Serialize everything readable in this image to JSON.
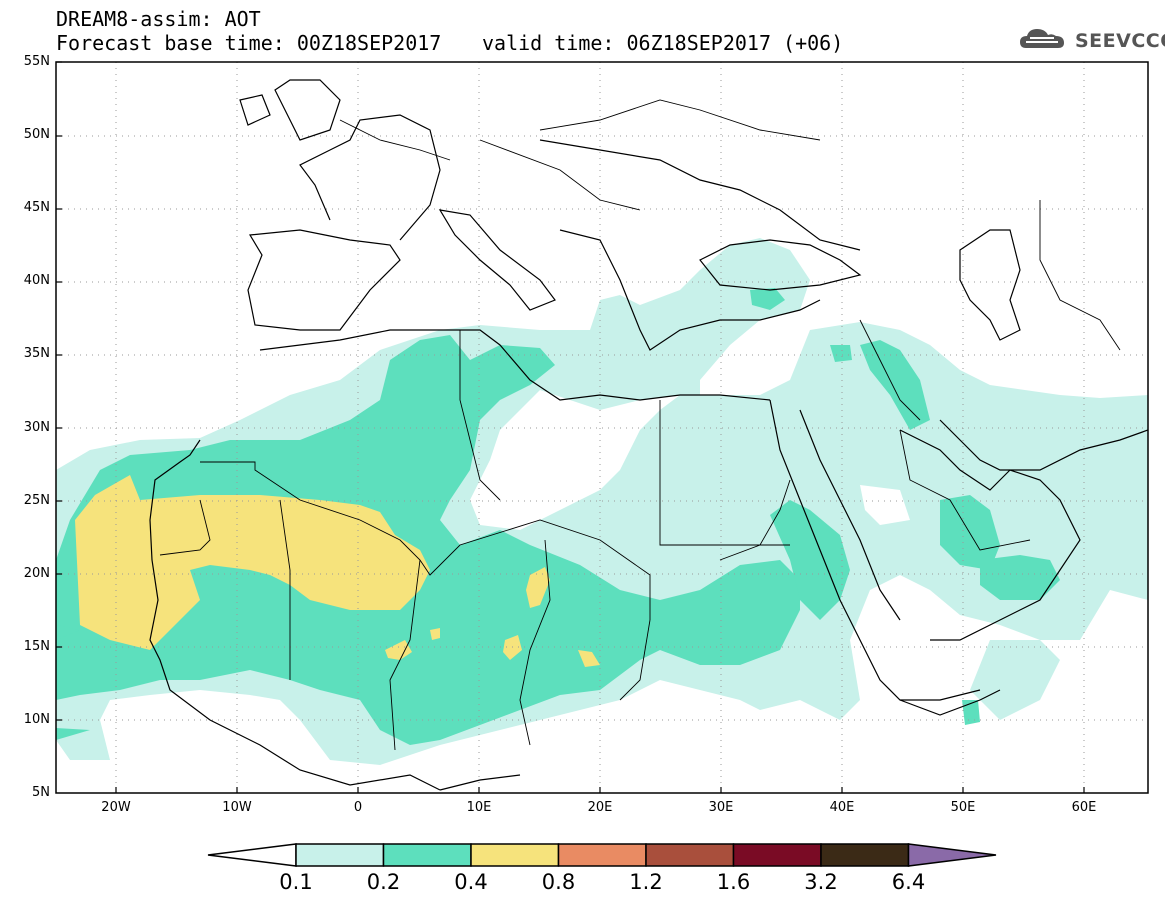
{
  "title_line1": "DREAM8-assim: AOT",
  "title_line2": "Forecast base time: 00Z18SEP2017",
  "title_valid": "valid time: 06Z18SEP2017 (+06)",
  "logo_text": "SEEVCCC",
  "logo_icon": "cloud-icon",
  "lat_labels": [
    "55N",
    "50N",
    "45N",
    "40N",
    "35N",
    "30N",
    "25N",
    "20N",
    "15N",
    "10N",
    "5N"
  ],
  "lon_labels": [
    "20W",
    "10W",
    "0",
    "10E",
    "20E",
    "30E",
    "40E",
    "50E",
    "60E"
  ],
  "colorbar": {
    "labels": [
      "0.1",
      "0.2",
      "0.4",
      "0.8",
      "1.2",
      "1.6",
      "3.2",
      "6.4"
    ],
    "colors": [
      "#ffffff",
      "#c8f1ea",
      "#5ddfbd",
      "#f6e37c",
      "#e98b63",
      "#a94f3c",
      "#7a0b25",
      "#3b2a16",
      "#8a6aa8"
    ]
  },
  "colors": {
    "level1": "#c8f1ea",
    "level2": "#5ddfbd",
    "level3": "#f6e37c"
  }
}
